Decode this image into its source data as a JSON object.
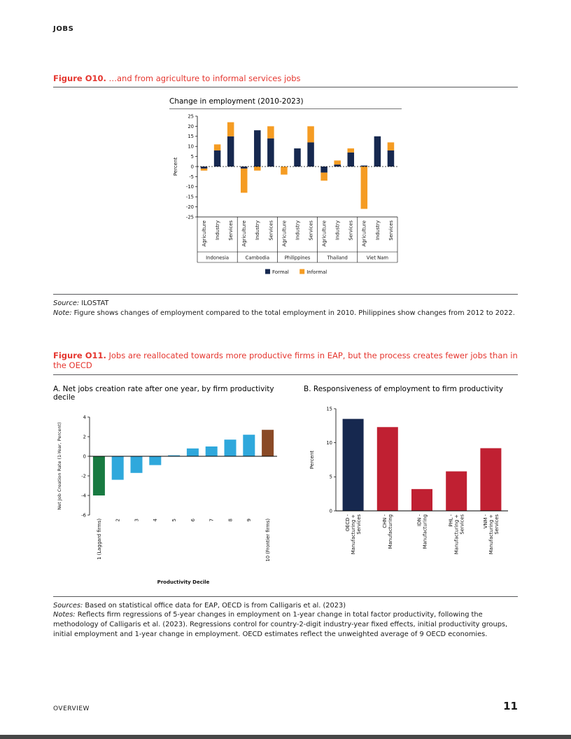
{
  "page": {
    "header": "JOBS",
    "footer_left": "OVERVIEW",
    "page_number": "11"
  },
  "figure_o10": {
    "label": "Figure O10.",
    "title": "…and from agriculture to informal services jobs",
    "source_label": "Source:",
    "source": " ILOSTAT",
    "note_label": "Note:",
    "note": " Figure shows changes of employment compared to the total employment in 2010. Philippines show changes from 2012 to 2022."
  },
  "figure_o11": {
    "label": "Figure O11.",
    "title": "Jobs are reallocated towards more productive firms in EAP, but the process creates fewer jobs than in the OECD",
    "sources_label": "Sources:",
    "sources": " Based on statistical office data for EAP, OECD is from Calligaris et al. (2023)",
    "notes_label": "Notes:",
    "notes": " Reflects firm regressions of 5-year changes in employment on 1-year change in total factor productivity, following the methodology of Calligaris et al. (2023). Regressions control for country-2-digit industry-year fixed effects, initial productivity groups, initial employment and 1-year change in employment. OECD estimates reflect the unweighted average of 9 OECD economies."
  },
  "chart_data": [
    {
      "id": "o10",
      "type": "bar",
      "stacked": true,
      "title": "Change in employment (2010-2023)",
      "ylabel": "Percent",
      "ylim": [
        -25,
        25
      ],
      "ytick_step": 5,
      "grid": false,
      "legend_position": "bottom",
      "groups": [
        "Indonesia",
        "Cambodia",
        "Philippines",
        "Thailand",
        "Viet Nam"
      ],
      "categories": [
        "Agriculture",
        "Industry",
        "Services"
      ],
      "series": [
        {
          "name": "Formal",
          "color": "#16284f",
          "values": [
            [
              -1,
              8,
              15
            ],
            [
              -1,
              18,
              14
            ],
            [
              0,
              9,
              12
            ],
            [
              -3,
              1,
              7
            ],
            [
              0.5,
              15,
              8
            ]
          ]
        },
        {
          "name": "Informal",
          "color": "#f59c23",
          "values": [
            [
              -1,
              3,
              7
            ],
            [
              -12,
              -2,
              6
            ],
            [
              -4,
              0,
              8
            ],
            [
              -4,
              2,
              2
            ],
            [
              -21,
              0,
              4
            ]
          ]
        }
      ]
    },
    {
      "id": "o11a",
      "type": "bar",
      "title": "A. Net jobs creation rate after one year, by firm productivity decile",
      "xlabel": "Productivity Decile",
      "ylabel": "Net Job Creation Rate (1-Year, Percent)",
      "ylim": [
        -6,
        4
      ],
      "ytick_step": 2,
      "grid": false,
      "categories": [
        "1 (Laggard firms)",
        "2",
        "3",
        "4",
        "5",
        "6",
        "7",
        "8",
        "9",
        "10 (Frontier firms)"
      ],
      "values": [
        -4.0,
        -2.4,
        -1.7,
        -0.9,
        0.1,
        0.8,
        1.0,
        1.7,
        2.2,
        2.7
      ],
      "colors": [
        "#187a41",
        "#2fa8dc",
        "#2fa8dc",
        "#2fa8dc",
        "#2fa8dc",
        "#2fa8dc",
        "#2fa8dc",
        "#2fa8dc",
        "#2fa8dc",
        "#8a4a26"
      ]
    },
    {
      "id": "o11b",
      "type": "bar",
      "title": "B. Responsiveness of employment to firm productivity",
      "ylabel": "Percent",
      "ylim": [
        0,
        15
      ],
      "ytick_step": 5,
      "grid": false,
      "categories": [
        [
          "OECD -",
          "Manufacturing +",
          "Services"
        ],
        [
          "CHN -",
          "Manufacturing"
        ],
        [
          "IDN -",
          "Manufacturing"
        ],
        [
          "PHL -",
          "Manufacturing +",
          "Services"
        ],
        [
          "VNM -",
          "Manufacturing +",
          "Services"
        ]
      ],
      "values": [
        13.5,
        12.3,
        3.2,
        5.8,
        9.2
      ],
      "colors": [
        "#16284f",
        "#c02032",
        "#c02032",
        "#c02032",
        "#c02032"
      ]
    }
  ]
}
